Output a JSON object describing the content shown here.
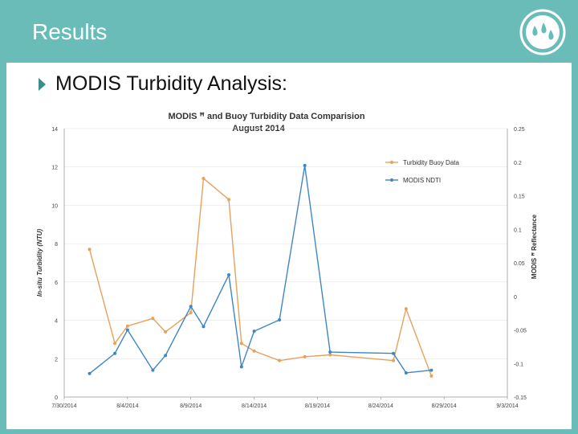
{
  "slide": {
    "title": "Results",
    "bullet": "MODIS Turbidity Analysis:"
  },
  "logo": {
    "icon": "water-drops-icon"
  },
  "colors": {
    "background": "#69bcb8",
    "buoy": "#e8a15c",
    "ndti": "#3f86c4",
    "grid": "#e6e6e6"
  },
  "chart_data": {
    "type": "line",
    "title": "MODIS ꟸ and Buoy Turbidity Data Comparision",
    "subtitle": "August 2014",
    "ylabel_left": "In-situ Turbidity (NTU)",
    "ylabel_right": "MODIS ꟸ Reflectance",
    "xlim": [
      "2014-07-30",
      "2014-09-03"
    ],
    "ylim_left": [
      0,
      14
    ],
    "ylim_right": [
      -0.15,
      0.25
    ],
    "x_ticks": [
      "7/30/2014",
      "8/4/2014",
      "8/9/2014",
      "8/14/2014",
      "8/19/2014",
      "8/24/2014",
      "8/29/2014",
      "9/3/2014"
    ],
    "y_ticks_left": [
      "0",
      "2",
      "4",
      "6",
      "8",
      "10",
      "12",
      "14"
    ],
    "y_ticks_right": [
      "-0.15",
      "-0.1",
      "-0.05",
      "0",
      "0.05",
      "0.1",
      "0.15",
      "0.2",
      "0.25"
    ],
    "legend_position": "top-right",
    "series": [
      {
        "name": "Turbidity Buoy Data",
        "axis": "left",
        "color": "#e8a15c",
        "points": [
          [
            "2014-08-01",
            7.7
          ],
          [
            "2014-08-03",
            2.8
          ],
          [
            "2014-08-04",
            3.7
          ],
          [
            "2014-08-06",
            4.1
          ],
          [
            "2014-08-07",
            3.4
          ],
          [
            "2014-08-09",
            4.4
          ],
          [
            "2014-08-10",
            11.4
          ],
          [
            "2014-08-12",
            10.3
          ],
          [
            "2014-08-13",
            2.8
          ],
          [
            "2014-08-14",
            2.4
          ],
          [
            "2014-08-16",
            1.9
          ],
          [
            "2014-08-18",
            2.1
          ],
          [
            "2014-08-20",
            2.2
          ],
          [
            "2014-08-25",
            1.9
          ],
          [
            "2014-08-26",
            4.6
          ],
          [
            "2014-08-28",
            1.1
          ]
        ]
      },
      {
        "name": "MODIS NDTI",
        "axis": "right",
        "color": "#3f86c4",
        "points": [
          [
            "2014-08-01",
            -0.115
          ],
          [
            "2014-08-03",
            -0.085
          ],
          [
            "2014-08-04",
            -0.05
          ],
          [
            "2014-08-06",
            -0.11
          ],
          [
            "2014-08-07",
            -0.088
          ],
          [
            "2014-08-09",
            -0.015
          ],
          [
            "2014-08-10",
            -0.045
          ],
          [
            "2014-08-12",
            0.032
          ],
          [
            "2014-08-13",
            -0.105
          ],
          [
            "2014-08-14",
            -0.052
          ],
          [
            "2014-08-16",
            -0.035
          ],
          [
            "2014-08-18",
            0.195
          ],
          [
            "2014-08-20",
            -0.083
          ],
          [
            "2014-08-25",
            -0.085
          ],
          [
            "2014-08-26",
            -0.114
          ],
          [
            "2014-08-28",
            -0.11
          ]
        ]
      }
    ]
  }
}
